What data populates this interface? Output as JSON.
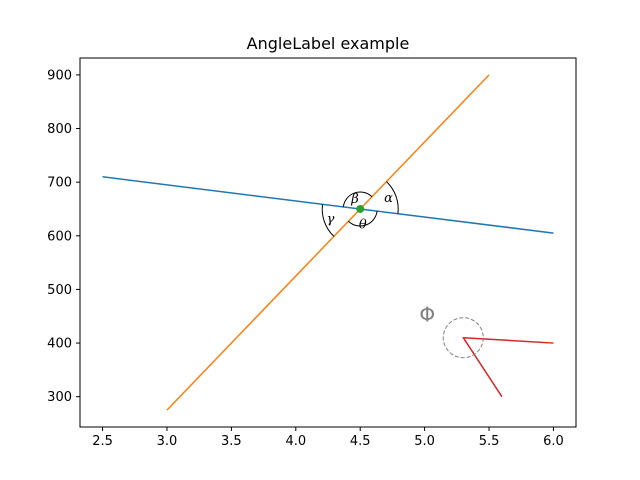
{
  "chart_data": {
    "type": "line",
    "title": "AngleLabel example",
    "xlabel": "",
    "ylabel": "",
    "xlim": [
      2.325,
      6.175
    ],
    "ylim": [
      243.5,
      931.5
    ],
    "xticks": [
      2.5,
      3.0,
      3.5,
      4.0,
      4.5,
      5.0,
      5.5,
      6.0
    ],
    "xtick_labels": [
      "2.5",
      "3.0",
      "3.5",
      "4.0",
      "4.5",
      "5.0",
      "5.5",
      "6.0"
    ],
    "yticks": [
      300,
      400,
      500,
      600,
      700,
      800,
      900
    ],
    "ytick_labels": [
      "300",
      "400",
      "500",
      "600",
      "700",
      "800",
      "900"
    ],
    "grid": false,
    "series": [
      {
        "color": "#1f77b4",
        "points": [
          [
            2.5,
            710
          ],
          [
            6.0,
            605
          ]
        ]
      },
      {
        "color": "#ff7f0e",
        "points": [
          [
            3.0,
            275
          ],
          [
            5.5,
            900
          ]
        ]
      },
      {
        "color": "#d62728",
        "points": [
          [
            6.0,
            400
          ],
          [
            5.3,
            410
          ],
          [
            5.6,
            300
          ]
        ]
      }
    ],
    "markers": [
      {
        "x": 4.5,
        "y": 650,
        "color": "#2ca02c"
      }
    ],
    "annotations": [
      {
        "text": "α",
        "x": 4.72,
        "y": 670
      },
      {
        "text": "β",
        "x": 4.46,
        "y": 668
      },
      {
        "text": "γ",
        "x": 4.27,
        "y": 630
      },
      {
        "text": "θ",
        "x": 4.52,
        "y": 620
      },
      {
        "text": "Φ",
        "x": 5.02,
        "y": 450
      }
    ]
  }
}
